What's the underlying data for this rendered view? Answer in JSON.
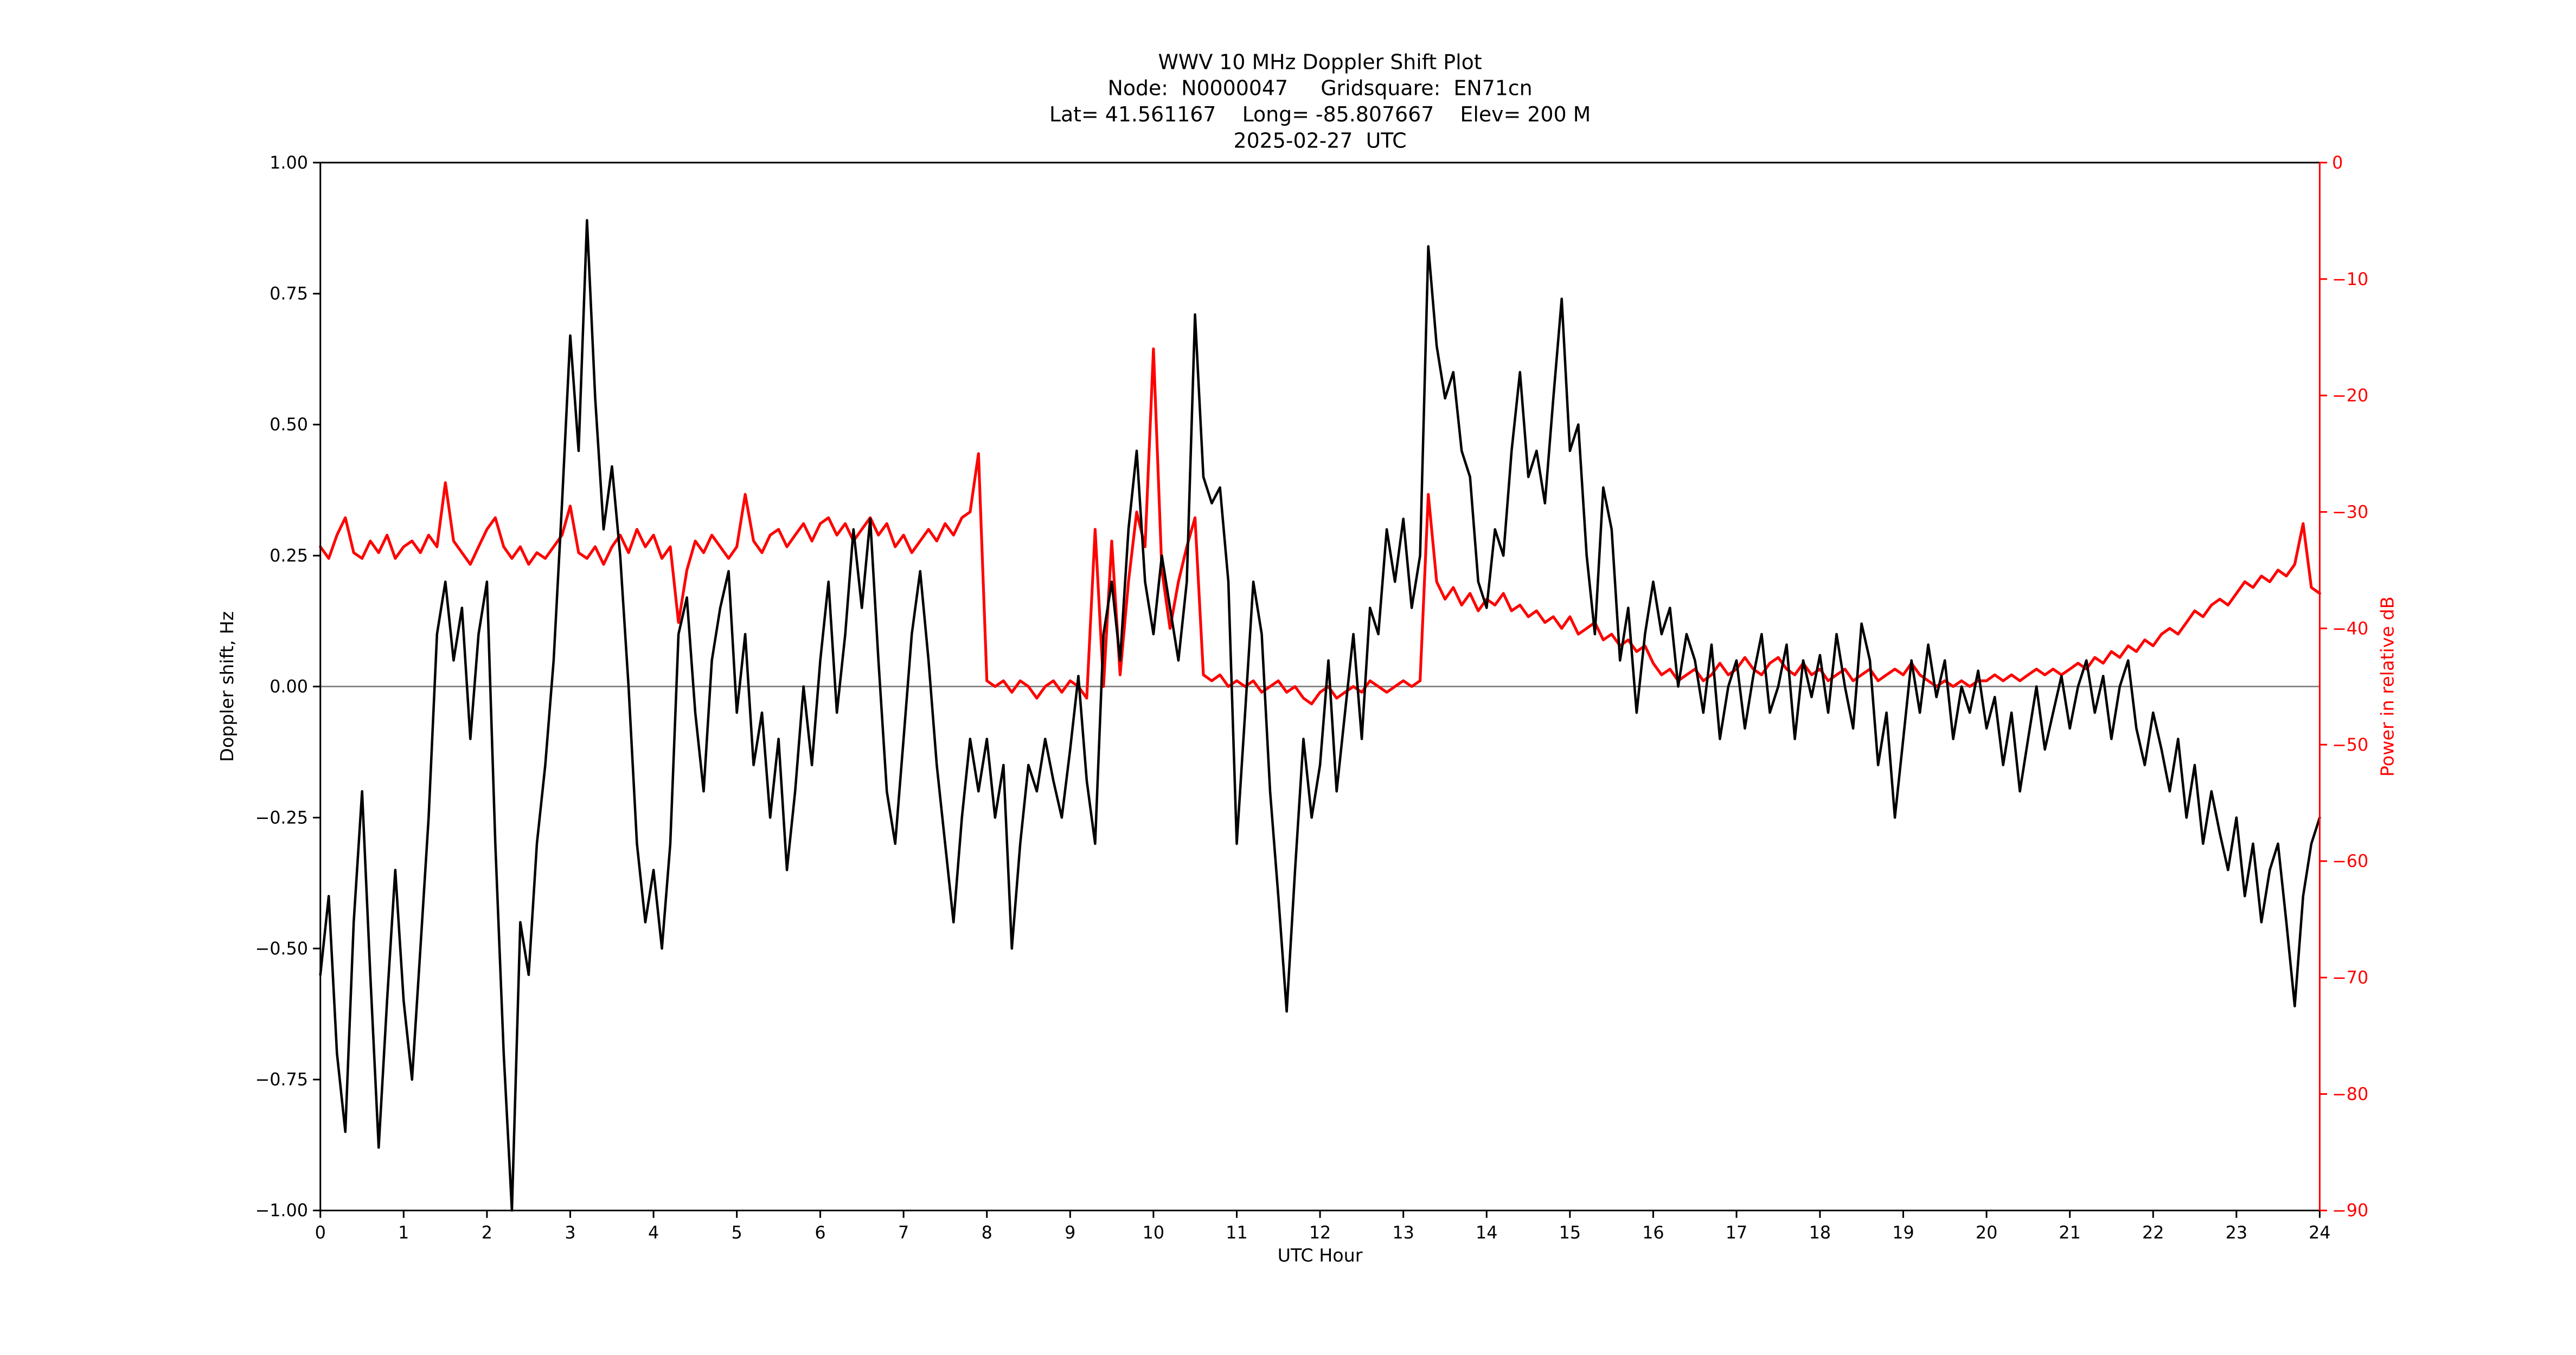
{
  "title": {
    "line1": "WWV 10 MHz Doppler Shift Plot",
    "line2": "Node:  N0000047     Gridsquare:  EN71cn",
    "line3": "Lat= 41.561167    Long= -85.807667    Elev= 200 M",
    "line4": "2025-02-27  UTC"
  },
  "colors": {
    "doppler": "#000000",
    "power": "#ff0000",
    "zero_line": "#808080",
    "axis": "#000000",
    "background": "#ffffff"
  },
  "chart_data": {
    "type": "line",
    "title": "WWV 10 MHz Doppler Shift Plot",
    "subtitle_lines": [
      "Node:  N0000047     Gridsquare:  EN71cn",
      "Lat= 41.561167    Long= -85.807667    Elev= 200 M",
      "2025-02-27  UTC"
    ],
    "xlabel": "UTC Hour",
    "ylabel_left": "Doppler shift, Hz",
    "ylabel_right": "Power in relative dB",
    "xlim": [
      0,
      24
    ],
    "ylim_left": [
      -1.0,
      1.0
    ],
    "ylim_right": [
      -90,
      0
    ],
    "grid": "zero-line-only",
    "legend": "none",
    "x_start": 0,
    "x_step": 0.1,
    "x_ticks": [
      {
        "v": 0,
        "label": "0"
      },
      {
        "v": 1,
        "label": "1"
      },
      {
        "v": 2,
        "label": "2"
      },
      {
        "v": 3,
        "label": "3"
      },
      {
        "v": 4,
        "label": "4"
      },
      {
        "v": 5,
        "label": "5"
      },
      {
        "v": 6,
        "label": "6"
      },
      {
        "v": 7,
        "label": "7"
      },
      {
        "v": 8,
        "label": "8"
      },
      {
        "v": 9,
        "label": "9"
      },
      {
        "v": 10,
        "label": "10"
      },
      {
        "v": 11,
        "label": "11"
      },
      {
        "v": 12,
        "label": "12"
      },
      {
        "v": 13,
        "label": "13"
      },
      {
        "v": 14,
        "label": "14"
      },
      {
        "v": 15,
        "label": "15"
      },
      {
        "v": 16,
        "label": "16"
      },
      {
        "v": 17,
        "label": "17"
      },
      {
        "v": 18,
        "label": "18"
      },
      {
        "v": 19,
        "label": "19"
      },
      {
        "v": 20,
        "label": "20"
      },
      {
        "v": 21,
        "label": "21"
      },
      {
        "v": 22,
        "label": "22"
      },
      {
        "v": 23,
        "label": "23"
      },
      {
        "v": 24,
        "label": "24"
      }
    ],
    "y_ticks_left": [
      {
        "v": 1.0,
        "label": "1.00"
      },
      {
        "v": 0.75,
        "label": "0.75"
      },
      {
        "v": 0.5,
        "label": "0.50"
      },
      {
        "v": 0.25,
        "label": "0.25"
      },
      {
        "v": 0.0,
        "label": "0.00"
      },
      {
        "v": -0.25,
        "label": "−0.25"
      },
      {
        "v": -0.5,
        "label": "−0.50"
      },
      {
        "v": -0.75,
        "label": "−0.75"
      },
      {
        "v": -1.0,
        "label": "−1.00"
      }
    ],
    "y_ticks_right": [
      {
        "v": 0,
        "label": "0"
      },
      {
        "v": -10,
        "label": "−10"
      },
      {
        "v": -20,
        "label": "−20"
      },
      {
        "v": -30,
        "label": "−30"
      },
      {
        "v": -40,
        "label": "−40"
      },
      {
        "v": -50,
        "label": "−50"
      },
      {
        "v": -60,
        "label": "−60"
      },
      {
        "v": -70,
        "label": "−70"
      },
      {
        "v": -80,
        "label": "−80"
      },
      {
        "v": -90,
        "label": "−90"
      }
    ],
    "series": [
      {
        "name": "Doppler shift",
        "axis": "left",
        "color": "#000000",
        "width": 1.5,
        "values": [
          -0.55,
          -0.4,
          -0.7,
          -0.85,
          -0.45,
          -0.2,
          -0.55,
          -0.88,
          -0.6,
          -0.35,
          -0.6,
          -0.75,
          -0.5,
          -0.25,
          0.1,
          0.2,
          0.05,
          0.15,
          -0.1,
          0.1,
          0.2,
          -0.3,
          -0.7,
          -1.0,
          -0.45,
          -0.55,
          -0.3,
          -0.15,
          0.05,
          0.35,
          0.67,
          0.45,
          0.89,
          0.55,
          0.3,
          0.42,
          0.25,
          0.0,
          -0.3,
          -0.45,
          -0.35,
          -0.5,
          -0.3,
          0.1,
          0.17,
          -0.05,
          -0.2,
          0.05,
          0.15,
          0.22,
          -0.05,
          0.1,
          -0.15,
          -0.05,
          -0.25,
          -0.1,
          -0.35,
          -0.2,
          0.0,
          -0.15,
          0.05,
          0.2,
          -0.05,
          0.1,
          0.3,
          0.15,
          0.32,
          0.05,
          -0.2,
          -0.3,
          -0.1,
          0.1,
          0.22,
          0.05,
          -0.15,
          -0.3,
          -0.45,
          -0.25,
          -0.1,
          -0.2,
          -0.1,
          -0.25,
          -0.15,
          -0.5,
          -0.3,
          -0.15,
          -0.2,
          -0.1,
          -0.18,
          -0.25,
          -0.12,
          0.02,
          -0.18,
          -0.3,
          0.1,
          0.2,
          0.05,
          0.3,
          0.45,
          0.2,
          0.1,
          0.25,
          0.15,
          0.05,
          0.2,
          0.71,
          0.4,
          0.35,
          0.38,
          0.2,
          -0.3,
          -0.05,
          0.2,
          0.1,
          -0.2,
          -0.4,
          -0.62,
          -0.35,
          -0.1,
          -0.25,
          -0.15,
          0.05,
          -0.2,
          -0.05,
          0.1,
          -0.1,
          0.15,
          0.1,
          0.3,
          0.2,
          0.32,
          0.15,
          0.25,
          0.84,
          0.65,
          0.55,
          0.6,
          0.45,
          0.4,
          0.2,
          0.15,
          0.3,
          0.25,
          0.45,
          0.6,
          0.4,
          0.45,
          0.35,
          0.55,
          0.74,
          0.45,
          0.5,
          0.25,
          0.1,
          0.38,
          0.3,
          0.05,
          0.15,
          -0.05,
          0.1,
          0.2,
          0.1,
          0.15,
          0.0,
          0.1,
          0.05,
          -0.05,
          0.08,
          -0.1,
          0.0,
          0.05,
          -0.08,
          0.02,
          0.1,
          -0.05,
          0.0,
          0.08,
          -0.1,
          0.05,
          -0.02,
          0.06,
          -0.05,
          0.1,
          0.0,
          -0.08,
          0.12,
          0.05,
          -0.15,
          -0.05,
          -0.25,
          -0.1,
          0.05,
          -0.05,
          0.08,
          -0.02,
          0.05,
          -0.1,
          0.0,
          -0.05,
          0.03,
          -0.08,
          -0.02,
          -0.15,
          -0.05,
          -0.2,
          -0.1,
          0.0,
          -0.12,
          -0.05,
          0.02,
          -0.08,
          0.0,
          0.05,
          -0.05,
          0.02,
          -0.1,
          0.0,
          0.05,
          -0.08,
          -0.15,
          -0.05,
          -0.12,
          -0.2,
          -0.1,
          -0.25,
          -0.15,
          -0.3,
          -0.2,
          -0.28,
          -0.35,
          -0.25,
          -0.4,
          -0.3,
          -0.45,
          -0.35,
          -0.3,
          -0.45,
          -0.61,
          -0.4,
          -0.3,
          -0.25
        ]
      },
      {
        "name": "Power",
        "axis": "right",
        "color": "#ff0000",
        "width": 1.7,
        "values": [
          -33,
          -34,
          -32,
          -30.5,
          -33.5,
          -34,
          -32.5,
          -33.5,
          -32,
          -34,
          -33,
          -32.5,
          -33.5,
          -32,
          -33,
          -27.5,
          -32.5,
          -33.5,
          -34.5,
          -33,
          -31.5,
          -30.5,
          -33,
          -34,
          -33,
          -34.5,
          -33.5,
          -34,
          -33,
          -32,
          -29.5,
          -33.5,
          -34,
          -33,
          -34.5,
          -33,
          -32,
          -33.5,
          -31.5,
          -33,
          -32,
          -34,
          -33,
          -39.5,
          -35,
          -32.5,
          -33.5,
          -32,
          -33,
          -34,
          -33,
          -28.5,
          -32.5,
          -33.5,
          -32,
          -31.5,
          -33,
          -32,
          -31,
          -32.5,
          -31,
          -30.5,
          -32,
          -31,
          -32.5,
          -31.5,
          -30.5,
          -32,
          -31,
          -33,
          -32,
          -33.5,
          -32.5,
          -31.5,
          -32.5,
          -31,
          -32,
          -30.5,
          -30,
          -25,
          -44.5,
          -45,
          -44.5,
          -45.5,
          -44.5,
          -45,
          -46,
          -45,
          -44.5,
          -45.5,
          -44.5,
          -45,
          -46,
          -31.5,
          -45,
          -32.5,
          -44,
          -36,
          -30,
          -33,
          -16,
          -35,
          -40,
          -36,
          -33,
          -30.5,
          -44,
          -44.5,
          -44,
          -45,
          -44.5,
          -45,
          -44.5,
          -45.5,
          -45,
          -44.5,
          -45.5,
          -45,
          -46,
          -46.5,
          -45.5,
          -45,
          -46,
          -45.5,
          -45,
          -45.5,
          -44.5,
          -45,
          -45.5,
          -45,
          -44.5,
          -45,
          -44.5,
          -28.5,
          -36,
          -37.5,
          -36.5,
          -38,
          -37,
          -38.5,
          -37.5,
          -38,
          -37,
          -38.5,
          -38,
          -39,
          -38.5,
          -39.5,
          -39,
          -40,
          -39,
          -40.5,
          -40,
          -39.5,
          -41,
          -40.5,
          -41.5,
          -41,
          -42,
          -41.5,
          -43,
          -44,
          -43.5,
          -44.5,
          -44,
          -43.5,
          -44.5,
          -44,
          -43,
          -44,
          -43.5,
          -42.5,
          -43.5,
          -44,
          -43,
          -42.5,
          -43.5,
          -44,
          -43,
          -44,
          -43.5,
          -44.5,
          -44,
          -43.5,
          -44.5,
          -44,
          -43.5,
          -44.5,
          -44,
          -43.5,
          -44,
          -43,
          -44,
          -44.5,
          -45,
          -44.5,
          -45,
          -44.5,
          -45,
          -44.5,
          -44.5,
          -44,
          -44.5,
          -44,
          -44.5,
          -44,
          -43.5,
          -44,
          -43.5,
          -44,
          -43.5,
          -43,
          -43.5,
          -42.5,
          -43,
          -42,
          -42.5,
          -41.5,
          -42,
          -41,
          -41.5,
          -40.5,
          -40,
          -40.5,
          -39.5,
          -38.5,
          -39,
          -38,
          -37.5,
          -38,
          -37,
          -36,
          -36.5,
          -35.5,
          -36,
          -35,
          -35.5,
          -34.5,
          -31,
          -36.5,
          -37
        ]
      }
    ]
  }
}
